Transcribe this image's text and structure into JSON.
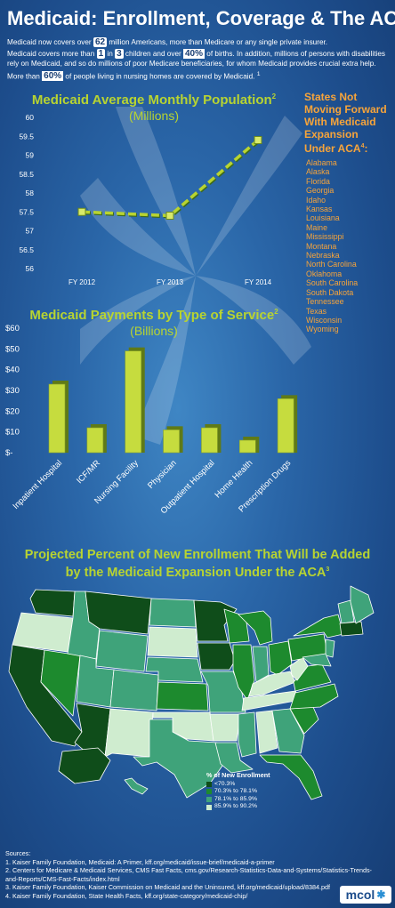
{
  "header": {
    "title": "Medicaid: Enrollment, Coverage & The ACA",
    "intro_p1_a": "Medicaid now covers over ",
    "intro_p1_num": "62",
    "intro_p1_b": " million Americans, more than Medicare or any single private insurer.",
    "intro_p2_a": "Medicaid covers more than ",
    "intro_p2_n1": "1",
    "intro_p2_b": " in ",
    "intro_p2_n2": "3",
    "intro_p2_c": " children and over ",
    "intro_p2_n3": "40%",
    "intro_p2_d": " of births. In addition, millions of persons with disabilities rely on Medicaid, and so do millions of poor Medicare beneficiaries, for whom Medicaid provides crucial extra help. More than ",
    "intro_p2_n4": "60%",
    "intro_p2_e": " of people living in nursing homes are covered by Medicaid. ",
    "intro_p2_sup": "1"
  },
  "states_panel": {
    "heading": [
      "States Not",
      "Moving Forward",
      "With Medicaid",
      "Expansion",
      "Under ACA"
    ],
    "heading_sup": "4",
    "heading_colon": ":",
    "states": [
      "Alabama",
      "Alaska",
      "Florida",
      "Georgia",
      "Idaho",
      "Kansas",
      "Louisiana",
      "Maine",
      "Mississippi",
      "Montana",
      "Nebraska",
      "North Carolina",
      "Oklahoma",
      "South Carolina",
      "South Dakota",
      "Tennessee",
      "Texas",
      "Wisconsin",
      "Wyoming"
    ],
    "color": "#f7a43a"
  },
  "chart1": {
    "title": "Medicaid Average Monthly Population",
    "title_sup": "2",
    "subtitle": "(Millions)"
  },
  "chart2": {
    "title": "Medicaid Payments by Type of Service",
    "title_sup": "2",
    "subtitle": "(Billions)"
  },
  "map_section": {
    "title_line1": "Projected Percent of New Enrollment That Will be Added",
    "title_line2": "by the Medicaid Expansion Under the ACA",
    "title_sup": "3",
    "legend_title": "% of New Enrollment",
    "legend": [
      {
        "label": "<70.3%",
        "color": "#0f4d1a"
      },
      {
        "label": "70.3% to 78.1%",
        "color": "#1d8a2e"
      },
      {
        "label": "78.1% to 85.9%",
        "color": "#3fa37a"
      },
      {
        "label": "85.9% to 90.2%",
        "color": "#cfeccf"
      }
    ]
  },
  "sources": {
    "heading": "Sources:",
    "items": [
      "1. Kaiser Family Foundation, Medicaid: A Primer, kff.org/medicaid/issue-brief/medicaid-a-primer",
      "2. Centers for Medicare & Medicaid Services, CMS Fast Facts, cms.gov/Research-Statistics-Data-and-Systems/Statistics-Trends-and-Reports/CMS-Fast-Facts/index.html",
      "3. Kaiser Family Foundation, Kaiser Commission on Medicaid and the Uninsured, kff.org/medicaid/upload/8384.pdf",
      "4. Kaiser Family Foundation, State Health Facts, kff.org/state-category/medicaid-chip/"
    ]
  },
  "logo": {
    "text": "mcol"
  },
  "colors": {
    "accent": "#b8d431",
    "orange": "#f7a43a",
    "bg": "#2a66a8"
  },
  "chart_data": [
    {
      "type": "line",
      "title": "Medicaid Average Monthly Population",
      "subtitle": "(Millions)",
      "categories": [
        "FY 2012",
        "FY 2013",
        "FY 2014"
      ],
      "series": [
        {
          "values": [
            57.5,
            57.4,
            59.4
          ]
        }
      ],
      "ylim": [
        56,
        60
      ],
      "yticks": [
        "56",
        "56.5",
        "57",
        "57.5",
        "58",
        "58.5",
        "59",
        "59.5",
        "60"
      ],
      "grid": false
    },
    {
      "type": "bar",
      "title": "Medicaid Payments by Type of Service",
      "subtitle": "(Billions)",
      "categories": [
        "Inpatient Hospital",
        "ICF/MR",
        "Nursing Facility",
        "Physician",
        "Outpatient Hospital",
        "Home Health",
        "Prescription Drugs"
      ],
      "values": [
        33,
        12,
        49,
        11,
        12,
        6,
        26
      ],
      "ylim": [
        0,
        60
      ],
      "yticks": [
        "$-",
        "$10",
        "$20",
        "$30",
        "$40",
        "$50",
        "$60"
      ],
      "grid": false
    }
  ]
}
